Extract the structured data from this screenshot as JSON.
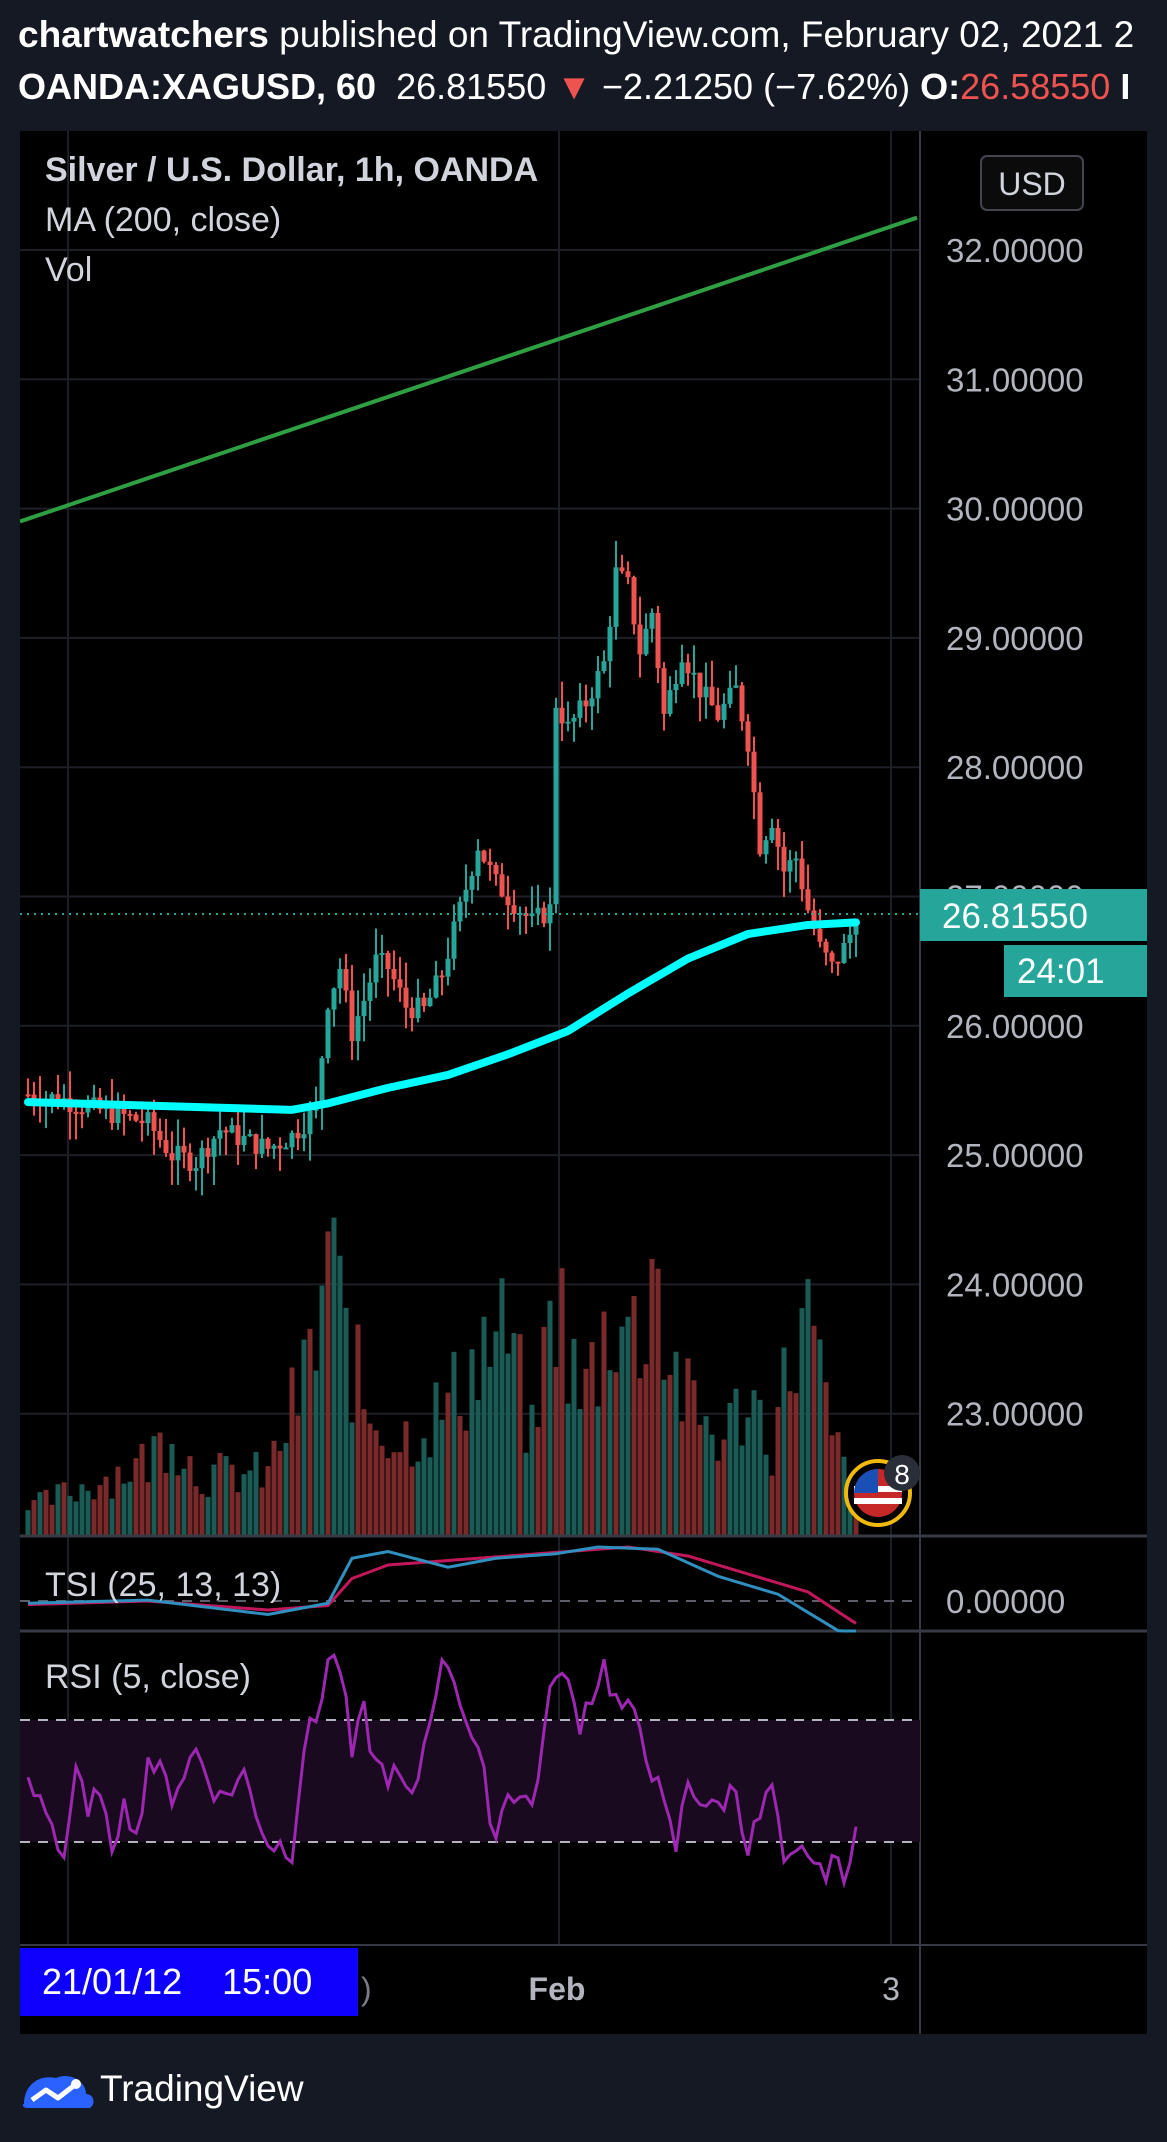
{
  "header": {
    "author": "chartwatchers",
    "published_text": "published on TradingView.com, February 02, 2021 2",
    "symbol": "OANDA:XAGUSD, 60",
    "last": "26.81550",
    "change": "−2.21250 (−7.62%)",
    "open_label": "O:",
    "open_value": "26.58550",
    "trail": "I"
  },
  "legend": {
    "title": "Silver / U.S. Dollar, 1h, OANDA",
    "ma": "MA (200, close)",
    "vol": "Vol",
    "tsi": "TSI (25, 13, 13)",
    "rsi": "RSI (5, close)"
  },
  "currency_button": "USD",
  "price_label": "26.81550",
  "countdown_label": "24:01",
  "tsi_axis_label": "0.00000",
  "crosshair_date": "21/01/12    15:00",
  "crosshair_tail": ")",
  "events_badge": "8",
  "brand": "TradingView",
  "colors": {
    "up": "#26a69a",
    "down": "#ef5350",
    "ma": "#00ffff",
    "trendline": "#2ea043",
    "tsi_line": "#2f8fbf",
    "tsi_signal": "#c2185b",
    "rsi_line": "#9c27b0",
    "price_tag": "#26a69a"
  },
  "chart_data": {
    "type": "candlestick",
    "symbol": "XAGUSD",
    "y_ticks": [
      "32.00000",
      "31.00000",
      "30.00000",
      "29.00000",
      "28.00000",
      "27.00000",
      "26.00000",
      "25.00000",
      "24.00000",
      "23.00000"
    ],
    "ylim": [
      22.0,
      32.6
    ],
    "x_ticks": [
      "Feb",
      "3"
    ],
    "last_price": 26.8155,
    "candle_anchors": [
      [
        0,
        25.47
      ],
      [
        6,
        25.43
      ],
      [
        10,
        25.37
      ],
      [
        16,
        25.3
      ],
      [
        20,
        25.25
      ],
      [
        24,
        25.0
      ],
      [
        28,
        24.95
      ],
      [
        32,
        25.2
      ],
      [
        36,
        25.12
      ],
      [
        40,
        25.05
      ],
      [
        44,
        25.15
      ],
      [
        48,
        25.35
      ],
      [
        50,
        26.2
      ],
      [
        52,
        26.45
      ],
      [
        54,
        25.95
      ],
      [
        56,
        26.2
      ],
      [
        58,
        26.5
      ],
      [
        60,
        26.45
      ],
      [
        63,
        26.15
      ],
      [
        66,
        26.12
      ],
      [
        69,
        26.4
      ],
      [
        72,
        26.9
      ],
      [
        75,
        27.4
      ],
      [
        78,
        27.1
      ],
      [
        81,
        26.95
      ],
      [
        84,
        26.8
      ],
      [
        87,
        26.9
      ],
      [
        88,
        28.5
      ],
      [
        90,
        28.3
      ],
      [
        93,
        28.5
      ],
      [
        96,
        28.8
      ],
      [
        98,
        29.5
      ],
      [
        100,
        29.4
      ],
      [
        102,
        28.9
      ],
      [
        104,
        29.2
      ],
      [
        106,
        28.4
      ],
      [
        109,
        28.9
      ],
      [
        112,
        28.6
      ],
      [
        115,
        28.4
      ],
      [
        118,
        28.6
      ],
      [
        120,
        28.2
      ],
      [
        122,
        27.4
      ],
      [
        124,
        27.6
      ],
      [
        126,
        27.2
      ],
      [
        128,
        27.3
      ],
      [
        130,
        26.9
      ],
      [
        132,
        26.6
      ],
      [
        134,
        26.45
      ],
      [
        136,
        26.6
      ],
      [
        138,
        26.81
      ]
    ],
    "ma_200": [
      [
        0,
        25.41
      ],
      [
        44,
        25.35
      ],
      [
        50,
        25.4
      ],
      [
        60,
        25.52
      ],
      [
        70,
        25.62
      ],
      [
        80,
        25.78
      ],
      [
        90,
        25.96
      ],
      [
        100,
        26.25
      ],
      [
        110,
        26.52
      ],
      [
        120,
        26.71
      ],
      [
        130,
        26.78
      ],
      [
        138,
        26.8
      ]
    ],
    "trendline": [
      [
        0,
        29.9
      ],
      [
        146,
        32.25
      ]
    ],
    "volume_anchors": [
      [
        0,
        0.08
      ],
      [
        20,
        0.22
      ],
      [
        24,
        0.32
      ],
      [
        28,
        0.18
      ],
      [
        40,
        0.18
      ],
      [
        48,
        0.55
      ],
      [
        50,
        0.85
      ],
      [
        52,
        0.65
      ],
      [
        56,
        0.38
      ],
      [
        62,
        0.28
      ],
      [
        70,
        0.38
      ],
      [
        76,
        0.55
      ],
      [
        80,
        0.58
      ],
      [
        84,
        0.28
      ],
      [
        88,
        0.72
      ],
      [
        92,
        0.38
      ],
      [
        98,
        0.68
      ],
      [
        102,
        0.55
      ],
      [
        104,
        0.88
      ],
      [
        106,
        0.58
      ],
      [
        110,
        0.38
      ],
      [
        116,
        0.28
      ],
      [
        120,
        0.42
      ],
      [
        124,
        0.28
      ],
      [
        128,
        0.58
      ],
      [
        130,
        0.62
      ],
      [
        134,
        0.28
      ],
      [
        138,
        0.12
      ]
    ],
    "rsi_levels": [
      70,
      30
    ],
    "rsi_anchors": [
      [
        0,
        48
      ],
      [
        3,
        42
      ],
      [
        6,
        25
      ],
      [
        8,
        55
      ],
      [
        10,
        36
      ],
      [
        12,
        50
      ],
      [
        14,
        22
      ],
      [
        16,
        48
      ],
      [
        18,
        30
      ],
      [
        20,
        58
      ],
      [
        24,
        46
      ],
      [
        28,
        60
      ],
      [
        32,
        44
      ],
      [
        36,
        52
      ],
      [
        40,
        30
      ],
      [
        44,
        28
      ],
      [
        46,
        62
      ],
      [
        48,
        70
      ],
      [
        50,
        90
      ],
      [
        52,
        88
      ],
      [
        54,
        58
      ],
      [
        56,
        72
      ],
      [
        58,
        55
      ],
      [
        62,
        50
      ],
      [
        64,
        42
      ],
      [
        68,
        82
      ],
      [
        70,
        90
      ],
      [
        72,
        78
      ],
      [
        76,
        50
      ],
      [
        78,
        32
      ],
      [
        80,
        48
      ],
      [
        84,
        42
      ],
      [
        88,
        88
      ],
      [
        90,
        80
      ],
      [
        92,
        70
      ],
      [
        96,
        88
      ],
      [
        98,
        76
      ],
      [
        102,
        68
      ],
      [
        106,
        40
      ],
      [
        108,
        28
      ],
      [
        110,
        50
      ],
      [
        114,
        40
      ],
      [
        118,
        48
      ],
      [
        120,
        28
      ],
      [
        124,
        48
      ],
      [
        126,
        20
      ],
      [
        130,
        28
      ],
      [
        132,
        18
      ],
      [
        134,
        26
      ],
      [
        136,
        15
      ],
      [
        138,
        40
      ]
    ],
    "tsi_anchors": [
      [
        0,
        -0.05
      ],
      [
        20,
        0.02
      ],
      [
        40,
        -0.3
      ],
      [
        50,
        -0.05
      ],
      [
        54,
        0.95
      ],
      [
        60,
        1.1
      ],
      [
        70,
        0.75
      ],
      [
        78,
        0.95
      ],
      [
        88,
        1.05
      ],
      [
        95,
        1.2
      ],
      [
        105,
        1.15
      ],
      [
        115,
        0.55
      ],
      [
        125,
        0.15
      ],
      [
        138,
        -0.9
      ]
    ],
    "tsi_signal_anchors": [
      [
        0,
        -0.08
      ],
      [
        20,
        0.0
      ],
      [
        40,
        -0.2
      ],
      [
        50,
        -0.1
      ],
      [
        54,
        0.5
      ],
      [
        60,
        0.8
      ],
      [
        70,
        0.9
      ],
      [
        80,
        1.0
      ],
      [
        90,
        1.1
      ],
      [
        100,
        1.2
      ],
      [
        110,
        1.0
      ],
      [
        120,
        0.6
      ],
      [
        130,
        0.2
      ],
      [
        138,
        -0.5
      ]
    ],
    "tsi_ylim": [
      -0.5,
      1.0
    ]
  }
}
